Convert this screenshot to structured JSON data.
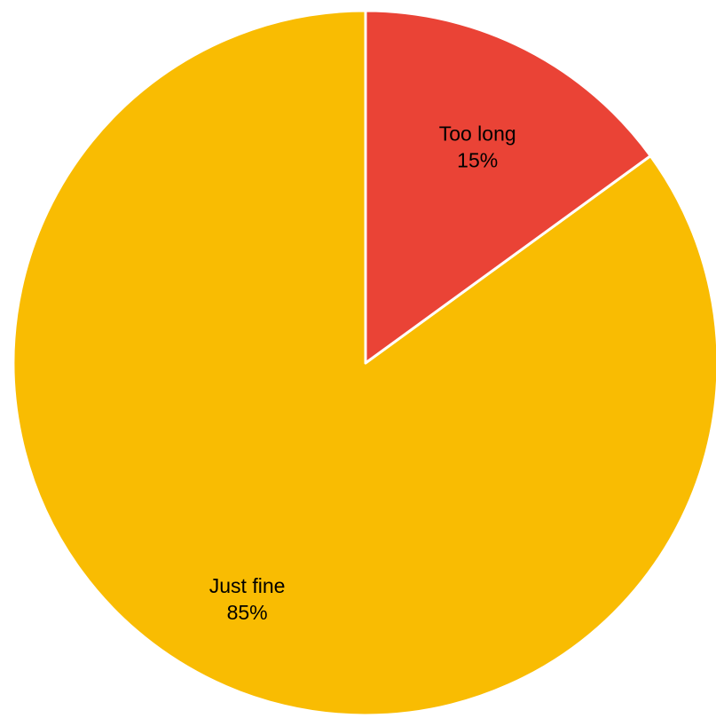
{
  "chart_data": {
    "type": "pie",
    "title": "",
    "start_angle_deg": 0,
    "direction": "counterclockwise",
    "slices": [
      {
        "label": "Just fine",
        "value": 85,
        "value_label": "85%",
        "color": "#F9BC02"
      },
      {
        "label": "Too long",
        "value": 15,
        "value_label": "15%",
        "color": "#EA4336"
      }
    ]
  }
}
